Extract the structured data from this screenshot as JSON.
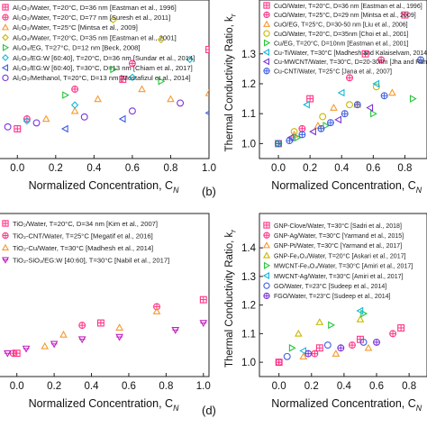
{
  "chart_data": [
    {
      "type": "scatter",
      "xlabel": "Normalized Concentration, C",
      "xlabel_sub": "N",
      "ylabel": "",
      "xlim": [
        -0.1,
        1.0
      ],
      "ylim": [
        0.85,
        1.65
      ],
      "x_ticks": [
        "0.0",
        "0.2",
        "0.4",
        "0.6",
        "0.8",
        "1.0"
      ],
      "x_tick_values": [
        0.0,
        0.2,
        0.4,
        0.6,
        0.8,
        1.0
      ],
      "grid": false,
      "legend_position": "top-left",
      "legend": [
        "Al₂O₃/Water, T=20°C, D=36 nm [Eastman et al., 1996]",
        "Al₂O₃/Water, T=20°C, D=77 nm [Suresh et al., 2011]",
        "Al₂O₃/Water, T=25°C [Mintsa et al., 2009]",
        "Al₂O₃/Water, T=20°C, D=35 nm [Eastman et al., 2001]",
        "Al₂O₃/EG, T=27°C, D=12 nm [Beck, 2008]",
        "Al₂O₃/EG:W [60:40], T=20°C, D=36 nm [Sundar et al., 2014]",
        "Al₂O₃/EG:W [60:40], T=30°C, D=13 nm [Chiam et al., 2017]",
        "Al₂O₃/Methanol, T=20°C, D=13 nm [Mostafizul et al., 2014]"
      ],
      "series": [
        {
          "name": "Al₂O₃/Water, T=20°C, D=36 nm [Eastman et al., 1996]",
          "color": "#ff3385",
          "marker": "square-plus",
          "x": [
            0.0,
            0.55,
            1.0
          ],
          "y": [
            1.0,
            1.25,
            1.4
          ]
        },
        {
          "name": "Al₂O₃/Water, T=20°C, D=77 nm [Suresh et al., 2011]",
          "color": "#ff3385",
          "marker": "circle-plus",
          "x": [
            0.05,
            0.3,
            0.6
          ],
          "y": [
            1.05,
            1.2,
            1.33
          ]
        },
        {
          "name": "Al₂O₃/Water, T=25°C [Mintsa et al., 2009]",
          "color": "#f59a2e",
          "marker": "triangle",
          "x": [
            0.15,
            0.3,
            0.42,
            0.65,
            0.8,
            1.0
          ],
          "y": [
            1.05,
            1.09,
            1.15,
            1.2,
            1.15,
            1.18
          ]
        },
        {
          "name": "Al₂O₃/Water, T=20°C, D=35 nm [Eastman et al., 2001]",
          "color": "#c9b800",
          "marker": "diamond",
          "x": [
            0.5,
            0.75
          ],
          "y": [
            1.55,
            1.45
          ]
        },
        {
          "name": "Al₂O₃/EG, T=27°C, D=12 nm [Beck, 2008]",
          "color": "#26c43a",
          "marker": "triangle-right",
          "x": [
            0.25,
            0.5,
            0.75
          ],
          "y": [
            1.17,
            1.3,
            1.24
          ]
        },
        {
          "name": "Al₂O₃/EG:W [60:40], T=20°C, D=36 nm [Sundar et al., 2014]",
          "color": "#12b8d8",
          "marker": "diamond",
          "x": [
            0.05,
            0.3,
            0.6,
            0.9
          ],
          "y": [
            1.04,
            1.12,
            1.26,
            1.35
          ]
        },
        {
          "name": "Al₂O₃/EG:W [60:40], T=30°C, D=13 nm [Chiam et al., 2017]",
          "color": "#4060e0",
          "marker": "triangle-left",
          "x": [
            0.25,
            0.55,
            1.0
          ],
          "y": [
            1.0,
            1.05,
            1.08
          ]
        },
        {
          "name": "Al₂O₃/Methanol, T=20°C, D=13 nm [Mostafizul et al., 2014]",
          "color": "#7a35d9",
          "marker": "circle",
          "x": [
            -0.05,
            0.1,
            0.35,
            0.6,
            0.85
          ],
          "y": [
            1.01,
            1.03,
            1.06,
            1.09,
            1.13
          ]
        }
      ]
    },
    {
      "type": "scatter",
      "panel_label": "(b)",
      "xlabel": "Normalized Concentration, C",
      "xlabel_sub": "N",
      "ylabel": "Thermal Conductivity Ratio, k",
      "ylabel_sub": "r",
      "xlim": [
        -0.12,
        0.94
      ],
      "ylim": [
        0.95,
        1.48
      ],
      "x_ticks": [
        "0.0",
        "0.2",
        "0.4",
        "0.6",
        "0.8"
      ],
      "x_tick_values": [
        0.0,
        0.2,
        0.4,
        0.6,
        0.8
      ],
      "y_ticks": [
        "1.0",
        "1.1",
        "1.2",
        "1.3"
      ],
      "y_tick_values": [
        1.0,
        1.1,
        1.2,
        1.3
      ],
      "grid": false,
      "legend_position": "top-left",
      "legend": [
        "CuO/Water, T=20°C, D=36 nm [Eastman et al., 1996]",
        "CuO/Water, T=25°C, D=29 nm [Mintsa et al., 2009]",
        "CuO/EG, T=25°C, D=30-50 nm [Liu et al., 2006]",
        "CuO/Water, T=20°C, D=35nm [Choi et al., 2001]",
        "Cu/EG, T=20°C, D=10nm [Eastman et al., 2001]",
        "Cu-Ti/Water, T=30°C [Madhesh and Kalaiselvam, 2014]",
        "Cu-MWCNT/Water, T=30°C, D=20-30nm [Jha and Ramaprabhu, 2008]",
        "Cu-CNT/Water, T=25°C [Jana et al., 2007]"
      ],
      "series": [
        {
          "name": "CuO/Water, T=20°C, D=36 nm [Eastman et al., 1996]",
          "color": "#ff3385",
          "marker": "square-plus",
          "x": [
            0.0,
            0.2,
            0.55,
            0.8
          ],
          "y": [
            1.0,
            1.15,
            1.3,
            1.43
          ]
        },
        {
          "name": "CuO/Water, T=25°C, D=29 nm [Mintsa et al., 2009]",
          "color": "#ff3385",
          "marker": "circle-plus",
          "x": [
            0.15,
            0.45,
            0.65
          ],
          "y": [
            1.05,
            1.22,
            1.28
          ]
        },
        {
          "name": "CuO/EG, T=25°C, D=30-50 nm [Liu et al., 2006]",
          "color": "#f59a2e",
          "marker": "triangle",
          "x": [
            0.1,
            0.25,
            0.35,
            0.5,
            0.72
          ],
          "y": [
            1.03,
            1.06,
            1.12,
            1.13,
            1.17
          ]
        },
        {
          "name": "CuO/Water, T=20°C, D=35nm [Choi et al., 2001]",
          "color": "#c9b800",
          "marker": "circle",
          "x": [
            0.1,
            0.28,
            0.45,
            0.62
          ],
          "y": [
            1.04,
            1.09,
            1.13,
            1.19
          ]
        },
        {
          "name": "Cu/EG, T=20°C, D=10nm [Eastman et al., 2001]",
          "color": "#26c43a",
          "marker": "triangle-right",
          "x": [
            0.0,
            0.12,
            0.3,
            0.6,
            0.85
          ],
          "y": [
            1.0,
            1.02,
            1.06,
            1.1,
            1.15
          ]
        },
        {
          "name": "Cu-Ti/Water, T=30°C [Madhesh and Kalaiselvam, 2014]",
          "color": "#12b8d8",
          "marker": "triangle-left",
          "x": [
            0.18,
            0.4,
            0.62
          ],
          "y": [
            1.13,
            1.17,
            1.2
          ]
        },
        {
          "name": "Cu-MWCNT/Water, T=30°C, D=20-30nm [Jha and Ramaprabhu, 2008]",
          "color": "#7a35d9",
          "marker": "triangle-left",
          "x": [
            0.08,
            0.22,
            0.38,
            0.58
          ],
          "y": [
            1.02,
            1.04,
            1.08,
            1.12
          ]
        },
        {
          "name": "Cu-CNT/Water, T=25°C [Jana et al., 2007]",
          "color": "#4060e0",
          "marker": "circle-plus",
          "x": [
            0.0,
            0.07,
            0.15,
            0.27,
            0.33,
            0.42,
            0.5,
            0.67,
            0.9
          ],
          "y": [
            1.0,
            1.01,
            1.03,
            1.05,
            1.07,
            1.1,
            1.13,
            1.16,
            1.28
          ]
        }
      ]
    },
    {
      "type": "scatter",
      "xlabel": "Normalized Concentration, C",
      "xlabel_sub": "N",
      "ylabel": "",
      "xlim": [
        -0.1,
        1.03
      ],
      "ylim": [
        0.9,
        1.6
      ],
      "x_ticks": [
        "0.0",
        "0.2",
        "0.4",
        "0.6",
        "0.8",
        "1.0"
      ],
      "x_tick_values": [
        0.0,
        0.2,
        0.4,
        0.6,
        0.8,
        1.0
      ],
      "grid": false,
      "legend_position": "top-left",
      "legend": [
        "TiO₂/Water, T=20°C, D=34 nm [Kim et al., 2007]",
        "TiO₂-CNT/Water, T=25°C [Megatif et al., 2016]",
        "TiO₂-Cu/Water, T=30°C [Madhesh et al., 2014]",
        "TiO₂-SiO₂/EG:W [40:60], T=30°C [Nabil et al., 2017]"
      ],
      "series": [
        {
          "name": "TiO₂/Water, T=20°C, D=34 nm [Kim et al., 2007]",
          "color": "#ff3385",
          "marker": "square-plus",
          "x": [
            0.0,
            0.45,
            1.0
          ],
          "y": [
            1.0,
            1.13,
            1.23
          ]
        },
        {
          "name": "TiO₂-CNT/Water, T=25°C [Megatif et al., 2016]",
          "color": "#ff3385",
          "marker": "circle-plus",
          "x": [
            -0.02,
            0.35,
            0.75
          ],
          "y": [
            1.0,
            1.12,
            1.2
          ]
        },
        {
          "name": "TiO₂-Cu/Water, T=30°C [Madhesh et al., 2014]",
          "color": "#f59a2e",
          "marker": "triangle",
          "x": [
            0.15,
            0.25,
            0.55,
            0.75
          ],
          "y": [
            1.03,
            1.08,
            1.11,
            1.18
          ]
        },
        {
          "name": "TiO₂-SiO₂/EG:W [40:60], T=30°C [Nabil et al., 2017]",
          "color": "#c020c0",
          "marker": "tri-down",
          "x": [
            -0.05,
            0.05,
            0.2,
            0.35,
            0.55,
            0.85,
            1.0
          ],
          "y": [
            1.0,
            1.02,
            1.04,
            1.06,
            1.07,
            1.1,
            1.13
          ]
        }
      ]
    },
    {
      "type": "scatter",
      "panel_label": "(d)",
      "xlabel": "Normalized Concentration, C",
      "xlabel_sub": "N",
      "ylabel": "Thermal Conductivity Ratio, k",
      "ylabel_sub": "r",
      "xlim": [
        -0.12,
        0.91
      ],
      "ylim": [
        0.95,
        1.52
      ],
      "x_ticks": [
        "0.0",
        "0.2",
        "0.4",
        "0.6",
        "0.8"
      ],
      "x_tick_values": [
        0.0,
        0.2,
        0.4,
        0.6,
        0.8
      ],
      "y_ticks": [
        "1.0",
        "1.1",
        "1.2",
        "1.3",
        "1.4"
      ],
      "y_tick_values": [
        1.0,
        1.1,
        1.2,
        1.3,
        1.4
      ],
      "grid": false,
      "legend_position": "top-left",
      "legend": [
        "GNP-Clove/Water, T=30°C [Sadri et al., 2018]",
        "GNP-Ag/Water, T=30°C [Yarmand et al., 2015]",
        "GNP-Pt/Water, T=30°C [Yarmand et al., 2017]",
        "GNP-Fe₃O₄/Water, T=20°C [Askari et al., 2017]",
        "MWCNT-Fe₃O₄/Water, T=30°C [Amiri et al., 2017]",
        "MWCNT-Ag/Water, T=30°C [Amiri et al., 2017]",
        "GO/Water, T=23°C [Sudeep et al., 2014]",
        "FGO/Water, T=23°C [Sudeep et al., 2014]"
      ],
      "series": [
        {
          "name": "GNP-Clove/Water, T=30°C [Sadri et al., 2018]",
          "color": "#ff3385",
          "marker": "square-plus",
          "x": [
            0.0,
            0.25,
            0.5,
            0.75
          ],
          "y": [
            1.0,
            1.05,
            1.08,
            1.12
          ]
        },
        {
          "name": "GNP-Ag/Water, T=30°C [Yarmand et al., 2015]",
          "color": "#ff3385",
          "marker": "circle-plus",
          "x": [
            0.0,
            0.22,
            0.45,
            0.7
          ],
          "y": [
            1.0,
            1.03,
            1.06,
            1.1
          ]
        },
        {
          "name": "GNP-Pt/Water, T=30°C [Yarmand et al., 2017]",
          "color": "#f59a2e",
          "marker": "triangle",
          "x": [
            0.15,
            0.35,
            0.55
          ],
          "y": [
            1.02,
            1.03,
            1.05
          ]
        },
        {
          "name": "GNP-Fe₃O₄/Water, T=20°C [Askari et al., 2017]",
          "color": "#c9b800",
          "marker": "triangle",
          "x": [
            0.12,
            0.25,
            0.5
          ],
          "y": [
            1.1,
            1.14,
            1.15
          ]
        },
        {
          "name": "MWCNT-Fe₃O₄/Water, T=30°C [Amiri et al., 2017]",
          "color": "#26c43a",
          "marker": "triangle-right",
          "x": [
            0.08,
            0.32,
            0.52
          ],
          "y": [
            1.05,
            1.13,
            1.17
          ]
        },
        {
          "name": "MWCNT-Ag/Water, T=30°C [Amiri et al., 2017]",
          "color": "#12b8d8",
          "marker": "triangle-left",
          "x": [
            0.15,
            0.5
          ],
          "y": [
            1.04,
            1.18
          ]
        },
        {
          "name": "GO/Water, T=23°C [Sudeep et al., 2014]",
          "color": "#4060e0",
          "marker": "circle",
          "x": [
            0.05,
            0.3,
            0.52
          ],
          "y": [
            1.02,
            1.06,
            1.07
          ]
        },
        {
          "name": "FGO/Water, T=23°C [Sudeep et al., 2014]",
          "color": "#7a35d9",
          "marker": "circle-plus",
          "x": [
            0.18,
            0.38,
            0.6
          ],
          "y": [
            1.03,
            1.05,
            1.07
          ]
        }
      ]
    }
  ]
}
